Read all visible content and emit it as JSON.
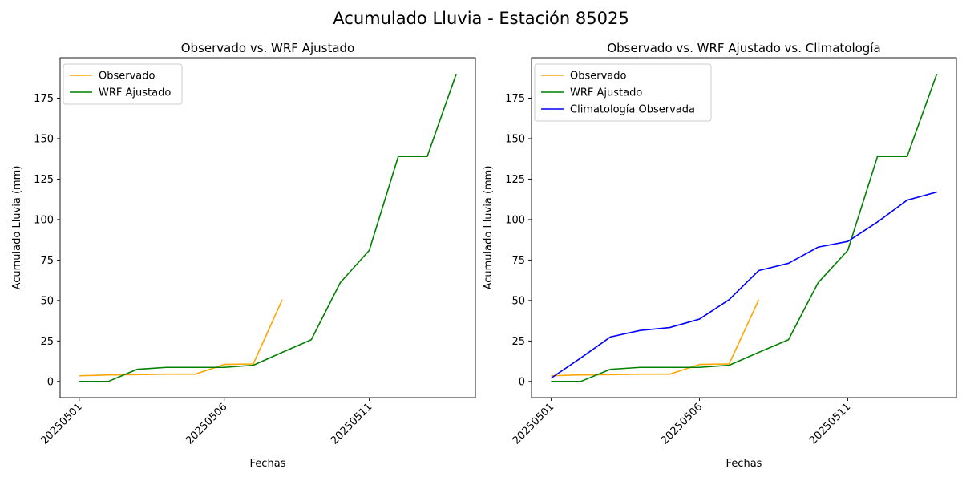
{
  "figure": {
    "title": "Acumulado Lluvia - Estación 85025"
  },
  "colors": {
    "Observado": "#ffa500",
    "WRF Ajustado": "#008000",
    "Climatología Observada": "#0000ff"
  },
  "chart_data": [
    {
      "type": "line",
      "title": "Observado vs. WRF Ajustado",
      "xlabel": "Fechas",
      "ylabel": "Acumulado Lluvia (mm)",
      "x": [
        "20250501",
        "20250502",
        "20250503",
        "20250504",
        "20250505",
        "20250506",
        "20250507",
        "20250508",
        "20250509",
        "20250510",
        "20250511",
        "20250512",
        "20250513",
        "20250514"
      ],
      "xticks": [
        "20250501",
        "20250506",
        "20250511"
      ],
      "ylim": [
        -10,
        200
      ],
      "yticks": [
        0,
        25,
        50,
        75,
        100,
        125,
        150,
        175
      ],
      "legend": "upper-left",
      "series": [
        {
          "name": "Observado",
          "values": [
            3.5,
            4.0,
            4.2,
            4.5,
            4.5,
            10.5,
            10.8,
            50.5,
            null,
            null,
            null,
            null,
            null,
            null
          ]
        },
        {
          "name": "WRF Ajustado",
          "values": [
            0.0,
            0.0,
            7.5,
            8.7,
            8.7,
            8.7,
            10.0,
            18.0,
            25.8,
            61.0,
            81.0,
            139.0,
            139.0,
            190.0
          ]
        }
      ]
    },
    {
      "type": "line",
      "title": "Observado vs. WRF Ajustado vs. Climatología",
      "xlabel": "Fechas",
      "ylabel": "Acumulado Lluvia (mm)",
      "x": [
        "20250501",
        "20250502",
        "20250503",
        "20250504",
        "20250505",
        "20250506",
        "20250507",
        "20250508",
        "20250509",
        "20250510",
        "20250511",
        "20250512",
        "20250513",
        "20250514"
      ],
      "xticks": [
        "20250501",
        "20250506",
        "20250511"
      ],
      "ylim": [
        -10,
        200
      ],
      "yticks": [
        0,
        25,
        50,
        75,
        100,
        125,
        150,
        175
      ],
      "legend": "upper-left",
      "series": [
        {
          "name": "Observado",
          "values": [
            3.5,
            4.0,
            4.2,
            4.5,
            4.5,
            10.5,
            10.8,
            50.5,
            null,
            null,
            null,
            null,
            null,
            null
          ]
        },
        {
          "name": "WRF Ajustado",
          "values": [
            0.0,
            0.0,
            7.5,
            8.7,
            8.7,
            8.7,
            10.0,
            18.0,
            25.8,
            61.0,
            81.0,
            139.0,
            139.0,
            190.0
          ]
        },
        {
          "name": "Climatología Observada",
          "values": [
            2.0,
            14.5,
            27.5,
            31.5,
            33.3,
            38.5,
            50.5,
            68.5,
            73.0,
            83.0,
            86.5,
            98.5,
            112.0,
            117.0
          ]
        }
      ]
    }
  ]
}
